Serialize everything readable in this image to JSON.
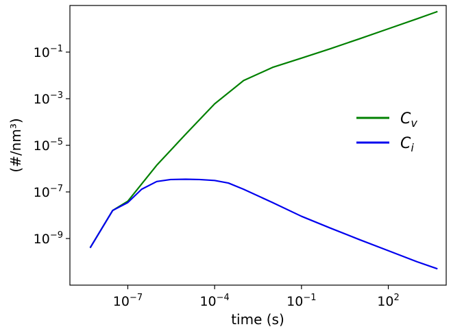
{
  "chart_data": {
    "type": "line",
    "title": "",
    "xlabel": "time (s)",
    "ylabel": "(#/nm³)",
    "xscale": "log",
    "yscale": "log",
    "xlim": [
      1e-09,
      10000.0
    ],
    "ylim": [
      1e-11,
      10
    ],
    "grid": false,
    "legend_position": "right",
    "x_ticks": [
      {
        "value": 1e-07,
        "base": "10",
        "exp": "−7"
      },
      {
        "value": 0.0001,
        "base": "10",
        "exp": "−4"
      },
      {
        "value": 0.1,
        "base": "10",
        "exp": "−1"
      },
      {
        "value": 100.0,
        "base": "10",
        "exp": "2"
      }
    ],
    "y_ticks": [
      {
        "value": 1e-09,
        "base": "10",
        "exp": "−9"
      },
      {
        "value": 1e-07,
        "base": "10",
        "exp": "−7"
      },
      {
        "value": 1e-05,
        "base": "10",
        "exp": "−5"
      },
      {
        "value": 0.001,
        "base": "10",
        "exp": "−3"
      },
      {
        "value": 0.1,
        "base": "10",
        "exp": "−1"
      }
    ],
    "series": [
      {
        "name": "C",
        "subscript": "v",
        "color": "#008000",
        "points": [
          [
            5e-09,
            4e-10
          ],
          [
            3e-08,
            1.6e-08
          ],
          [
            1e-07,
            4e-08
          ],
          [
            1e-06,
            1.4e-06
          ],
          [
            1e-05,
            3e-05
          ],
          [
            0.0001,
            0.0006
          ],
          [
            0.001,
            0.006
          ],
          [
            0.01,
            0.022
          ],
          [
            0.1,
            0.055
          ],
          [
            1,
            0.14
          ],
          [
            10.0,
            0.37
          ],
          [
            100.0,
            1.0
          ],
          [
            1000.0,
            2.7
          ],
          [
            5000.0,
            5.5
          ]
        ]
      },
      {
        "name": "C",
        "subscript": "i",
        "color": "#0000ee",
        "points": [
          [
            5e-09,
            4e-10
          ],
          [
            3e-08,
            1.6e-08
          ],
          [
            1e-07,
            3.5e-08
          ],
          [
            3e-07,
            1.3e-07
          ],
          [
            1e-06,
            2.8e-07
          ],
          [
            3e-06,
            3.4e-07
          ],
          [
            1e-05,
            3.5e-07
          ],
          [
            3e-05,
            3.4e-07
          ],
          [
            0.0001,
            3.1e-07
          ],
          [
            0.0003,
            2.4e-07
          ],
          [
            0.001,
            1.3e-07
          ],
          [
            0.01,
            3.5e-08
          ],
          [
            0.1,
            9e-09
          ],
          [
            1,
            2.8e-09
          ],
          [
            10.0,
            9e-10
          ],
          [
            100.0,
            3e-10
          ],
          [
            1000.0,
            1e-10
          ],
          [
            5000.0,
            5e-11
          ]
        ]
      }
    ]
  }
}
